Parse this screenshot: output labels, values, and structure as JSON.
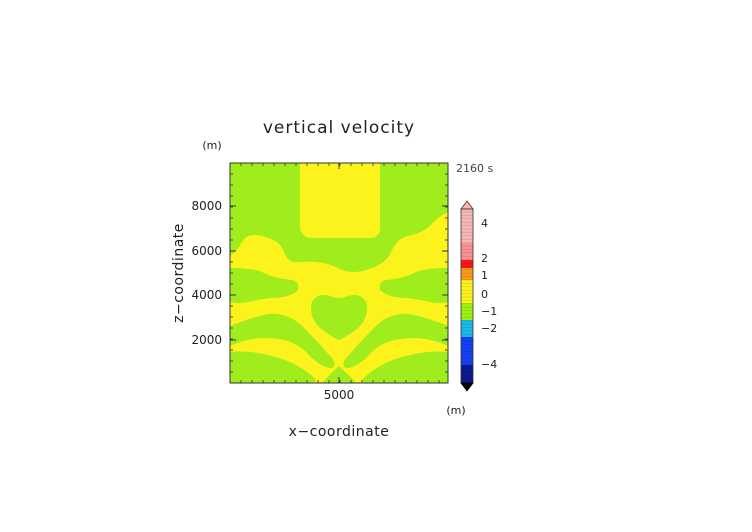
{
  "chart_data": {
    "type": "heatmap",
    "title": "vertical velocity",
    "time_label": "2160 s",
    "xlabel": "x−coordinate",
    "ylabel": "z−coordinate",
    "x_unit": "(m)",
    "y_unit": "(m)",
    "x_ticks": [
      "5000"
    ],
    "y_ticks": [
      "2000",
      "4000",
      "6000",
      "8000"
    ],
    "colorbar": {
      "tick_labels": [
        "4",
        "2",
        "1",
        "0",
        "−1",
        "−2",
        "−4"
      ],
      "colors": {
        "over": "#f6b6b6",
        "pos_high": "#fa9090",
        "pos_2": "#f81818",
        "pos_1": "#f89a18",
        "pos_0": "#fcf21c",
        "neg_0": "#9ef014",
        "neg_1": "#1ab8e8",
        "neg_2": "#1440f0",
        "neg_low": "#0a1a90",
        "under": "#000000"
      }
    },
    "field_colors": {
      "positive": "#fcf21c",
      "negative": "#a0ec1c"
    }
  }
}
